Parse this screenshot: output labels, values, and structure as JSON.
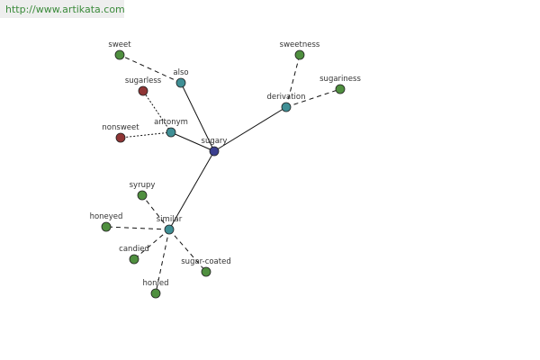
{
  "header": {
    "url": "http://www.artikata.com"
  },
  "nodes": [
    {
      "label": "sugary"
    },
    {
      "label": "also"
    },
    {
      "label": "antonym"
    },
    {
      "label": "derivation"
    },
    {
      "label": "similar"
    },
    {
      "label": "sweet"
    },
    {
      "label": "sugarless"
    },
    {
      "label": "nonsweet"
    },
    {
      "label": "sweetness"
    },
    {
      "label": "sugariness"
    },
    {
      "label": "syrupy"
    },
    {
      "label": "honeyed"
    },
    {
      "label": "candied"
    },
    {
      "label": "honied"
    },
    {
      "label": "sugar-coated"
    }
  ]
}
